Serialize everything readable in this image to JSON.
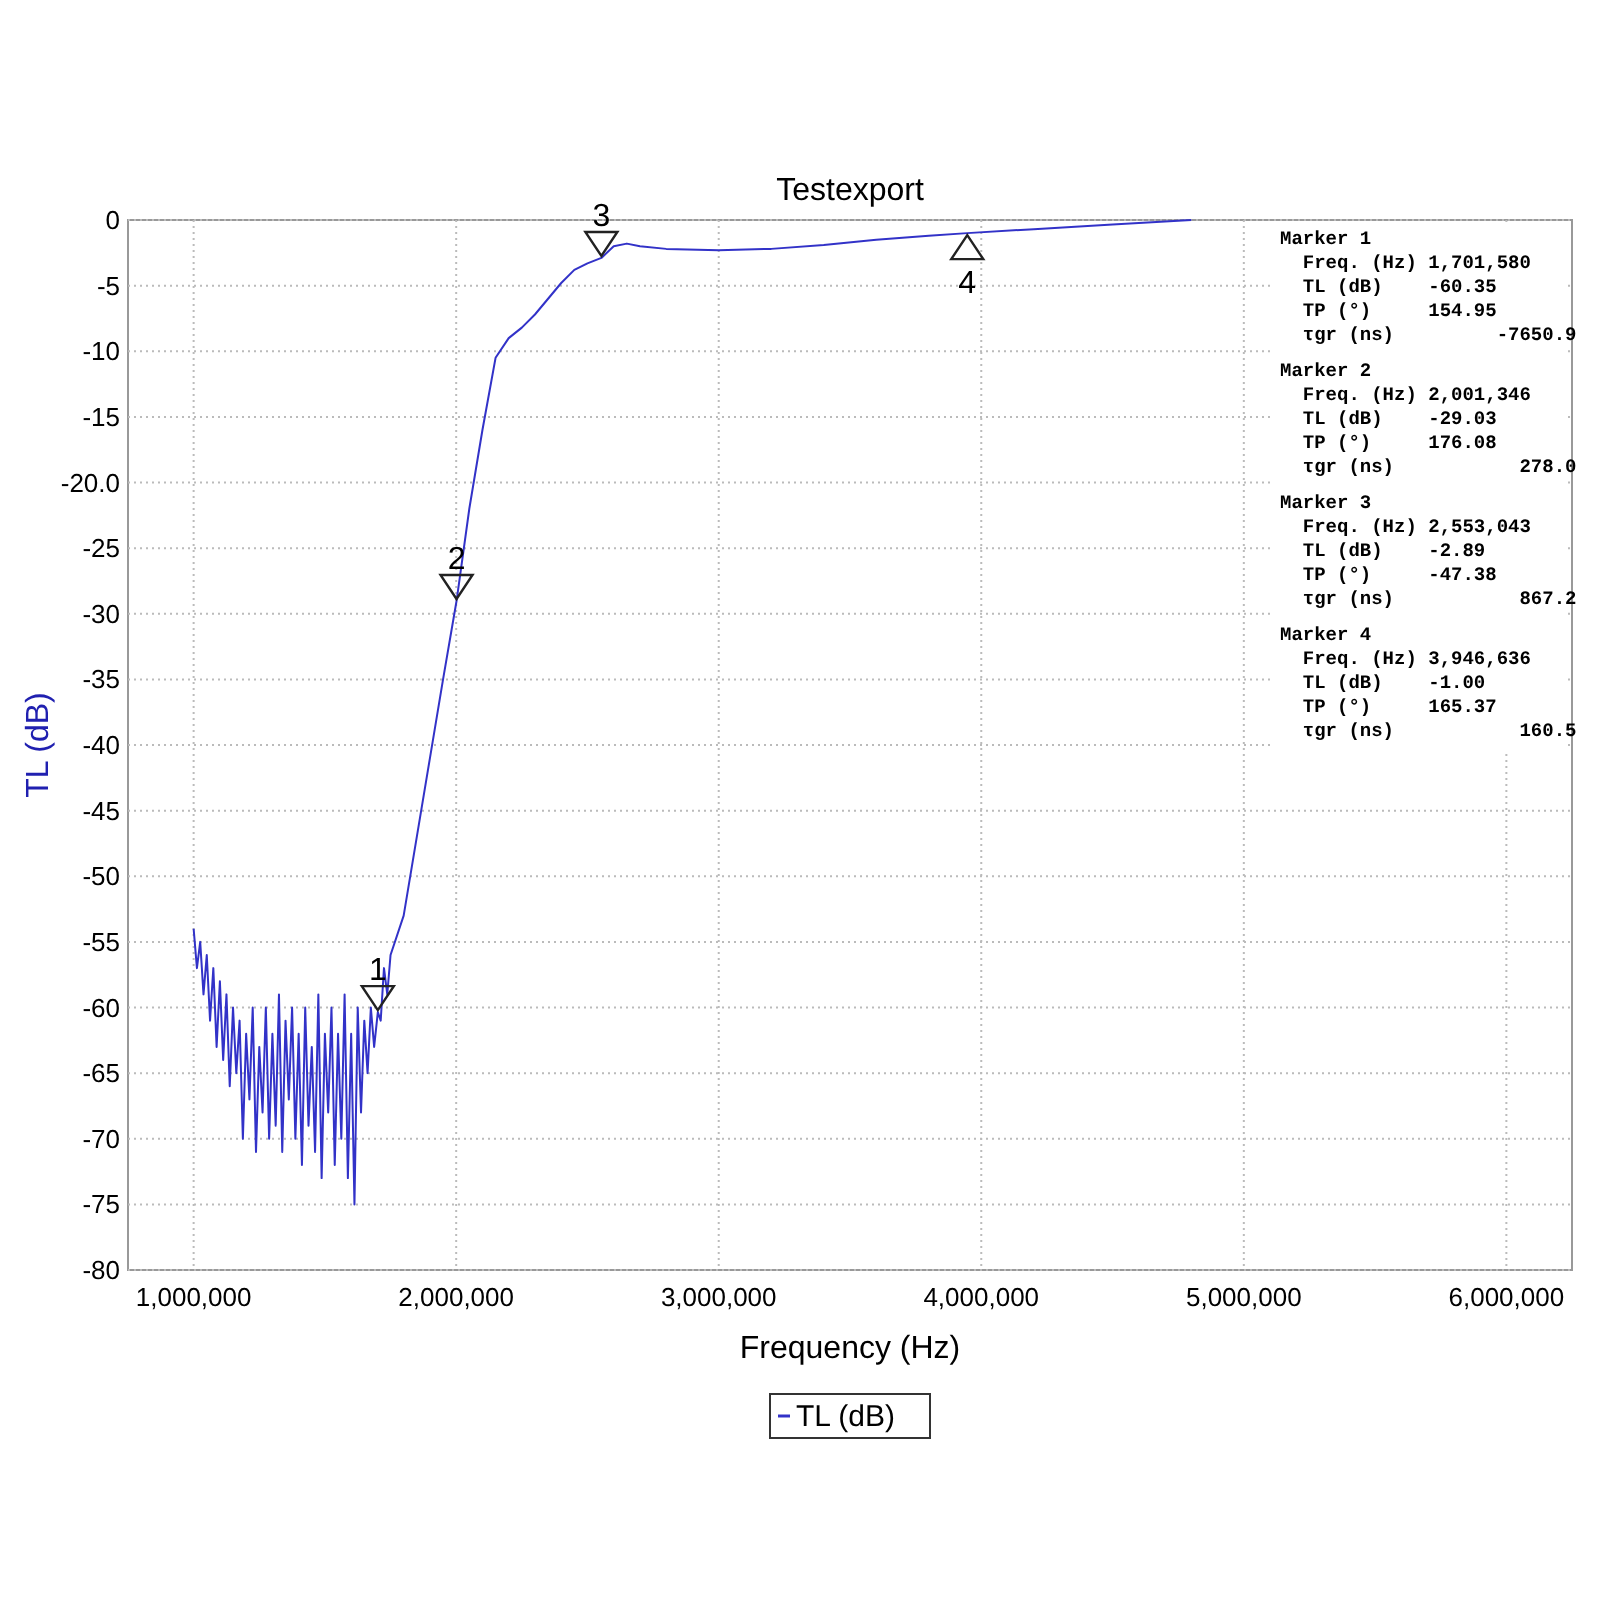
{
  "chart_data": {
    "type": "line",
    "title": "Testexport",
    "xlabel": "Frequency (Hz)",
    "ylabel": "TL (dB)",
    "xlim": [
      750000,
      6250000
    ],
    "ylim": [
      -80,
      0
    ],
    "xticks": [
      {
        "value": 1000000,
        "label": "1,000,000"
      },
      {
        "value": 2000000,
        "label": "2,000,000"
      },
      {
        "value": 3000000,
        "label": "3,000,000"
      },
      {
        "value": 4000000,
        "label": "4,000,000"
      },
      {
        "value": 5000000,
        "label": "5,000,000"
      },
      {
        "value": 6000000,
        "label": "6,000,000"
      }
    ],
    "yticks": [
      0,
      -5,
      -10,
      -15,
      {
        "value": -20,
        "label": "-20.0"
      },
      -25,
      -30,
      -35,
      -40,
      -45,
      -50,
      -55,
      -60,
      -65,
      -70,
      -75,
      -80
    ],
    "grid": true,
    "legend": "bottom",
    "line_style": "solid",
    "marker": "none",
    "series": [
      {
        "name": "TL (dB)",
        "color": "#3232c8",
        "x": [
          1000000,
          1012500,
          1025000,
          1037500,
          1050000,
          1062500,
          1075000,
          1087500,
          1100000,
          1112500,
          1125000,
          1137500,
          1150000,
          1162500,
          1175000,
          1187500,
          1200000,
          1212500,
          1225000,
          1237500,
          1250000,
          1262500,
          1275000,
          1287500,
          1300000,
          1312500,
          1325000,
          1337500,
          1350000,
          1362500,
          1375000,
          1387500,
          1400000,
          1412500,
          1425000,
          1437500,
          1450000,
          1462500,
          1475000,
          1487500,
          1500000,
          1512500,
          1525000,
          1537500,
          1550000,
          1562500,
          1575000,
          1587500,
          1600000,
          1612500,
          1625000,
          1637500,
          1650000,
          1662500,
          1675000,
          1687500,
          1701580,
          1712500,
          1725000,
          1737500,
          1750000,
          1800000,
          1850000,
          1900000,
          1950000,
          2001346,
          2050000,
          2100000,
          2150000,
          2200000,
          2250000,
          2300000,
          2350000,
          2400000,
          2450000,
          2500000,
          2553043,
          2600000,
          2650000,
          2700000,
          2800000,
          3000000,
          3200000,
          3400000,
          3600000,
          3800000,
          3946636,
          4200000,
          4500000,
          4800000
        ],
        "values": [
          -54,
          -57,
          -55,
          -59,
          -56,
          -61,
          -57,
          -63,
          -58,
          -64,
          -59,
          -66,
          -60,
          -65,
          -61,
          -70,
          -62,
          -67,
          -60,
          -71,
          -63,
          -68,
          -60,
          -70,
          -62,
          -69,
          -59,
          -71,
          -61,
          -67,
          -60,
          -70,
          -62,
          -72,
          -60,
          -69,
          -63,
          -71,
          -59,
          -73,
          -62,
          -68,
          -60,
          -72,
          -62,
          -70,
          -59,
          -73,
          -62,
          -75,
          -60,
          -68,
          -61,
          -65,
          -60,
          -63,
          -60.35,
          -61,
          -57,
          -59,
          -56,
          -53,
          -47,
          -41,
          -35,
          -29.03,
          -22,
          -16,
          -10.5,
          -9,
          -8.2,
          -7.2,
          -6,
          -4.8,
          -3.8,
          -3.3,
          -2.89,
          -2,
          -1.8,
          -2,
          -2.2,
          -2.3,
          -2.2,
          -1.9,
          -1.5,
          -1.2,
          -1,
          -0.7,
          -0.35,
          0
        ]
      }
    ],
    "annotations": [
      {
        "text": "1",
        "x": 1701580,
        "y": -60.35
      },
      {
        "text": "2",
        "x": 2001346,
        "y": -29.03
      },
      {
        "text": "3",
        "x": 2553043,
        "y": -2.89
      },
      {
        "text": "4",
        "x": 3946636,
        "y": -1.0
      },
      "Marker 1",
      "  Freq. (Hz) 1,701,580",
      "  TL (dB)    -60.35",
      "  TP (°)     154.95",
      "  τgr (ns)         -7650.9",
      "Marker 2",
      "  Freq. (Hz) 2,001,346",
      "  TL (dB)    -29.03",
      "  TP (°)     176.08",
      "  τgr (ns)           278.0",
      "Marker 3",
      "  Freq. (Hz) 2,553,043",
      "  TL (dB)    -2.89",
      "  TP (°)     -47.38",
      "  τgr (ns)           867.2",
      "Marker 4",
      "  Freq. (Hz) 3,946,636",
      "  TL (dB)    -1.00",
      "  TP (°)     165.37",
      "  τgr (ns)           160.5"
    ]
  }
}
